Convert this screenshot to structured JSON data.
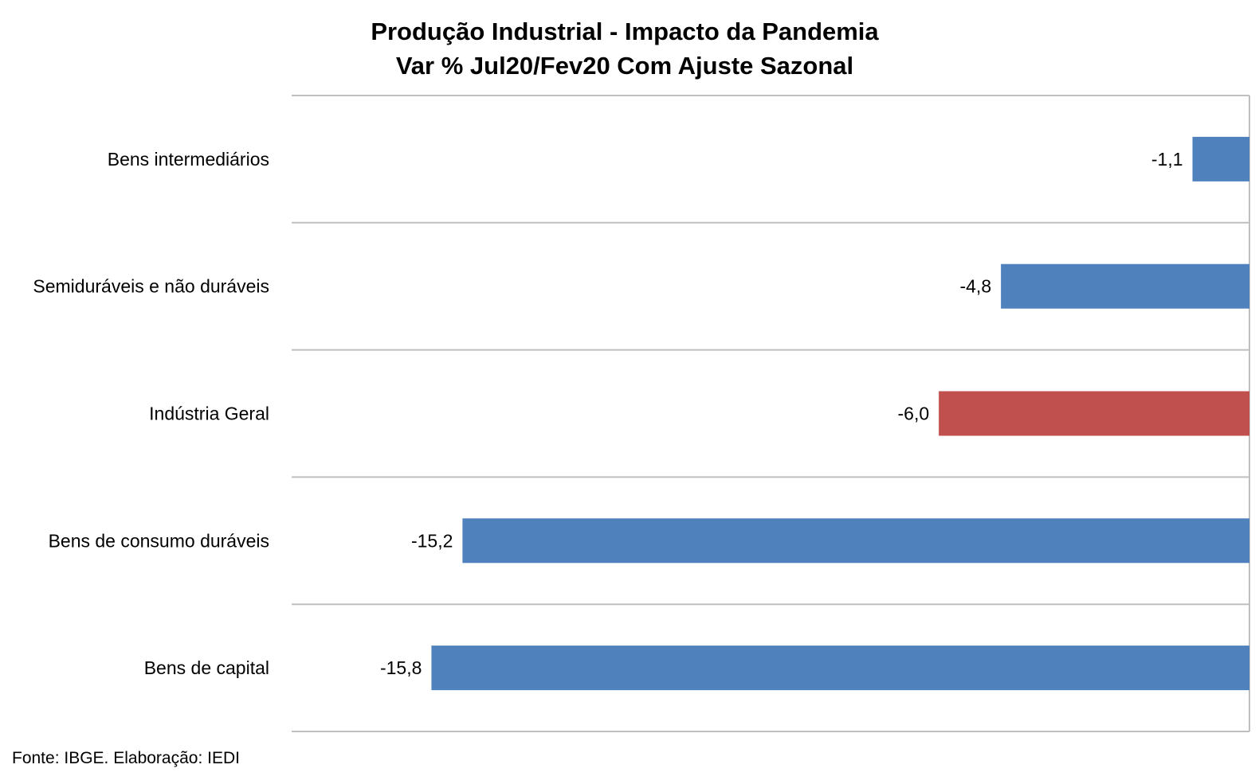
{
  "chart_data": {
    "type": "bar",
    "orientation": "horizontal",
    "title": "Produção Industrial - Impacto da Pandemia",
    "subtitle": "Var % Jul20/Fev20 Com Ajuste Sazonal",
    "categories": [
      "Bens intermediários",
      "Semiduráveis e não duráveis",
      "Indústria Geral",
      "Bens de consumo duráveis ",
      "Bens de capital"
    ],
    "values": [
      -1.1,
      -4.8,
      -6.0,
      -15.2,
      -15.8
    ],
    "data_labels": [
      "-1,1",
      "-4,8",
      "-6,0",
      "-15,2",
      "-15,8"
    ],
    "highlight_category": "Indústria Geral",
    "xlim": [
      -18.5,
      0
    ],
    "grid": "horizontal-separators",
    "legend": "none",
    "colors": {
      "default": "#4f81bd",
      "highlight": "#c0504d",
      "gridline": "#bfbfbf"
    }
  },
  "source": "Fonte: IBGE. Elaboração: IEDI"
}
